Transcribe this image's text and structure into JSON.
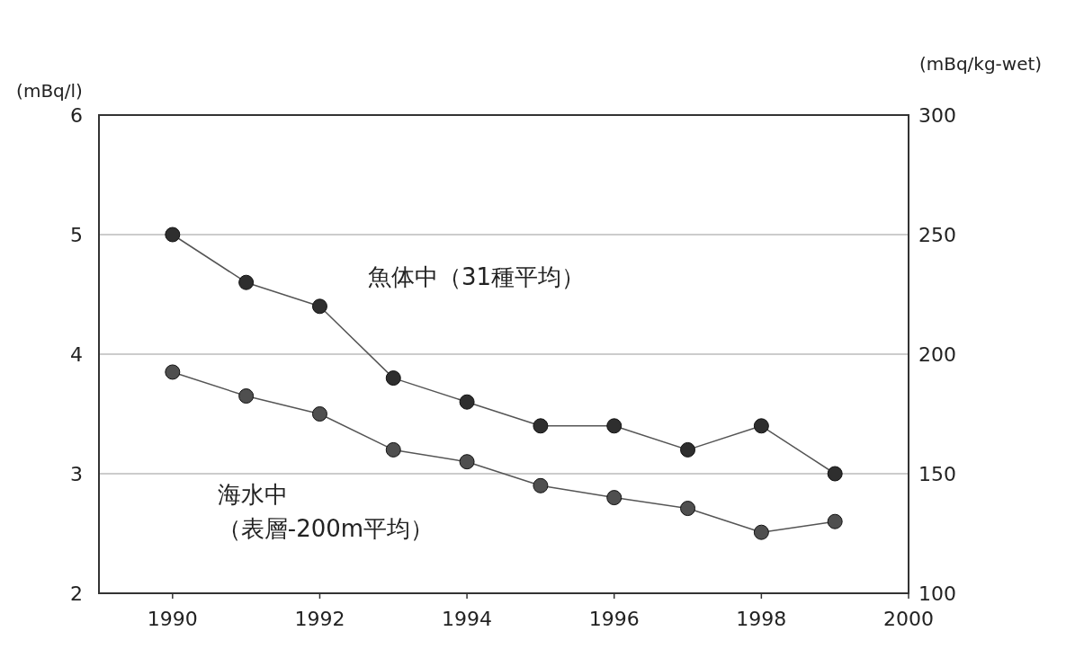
{
  "chart_data": {
    "type": "line",
    "ylabel": "(mBq/l)",
    "y2label": "(mBq/kg-wet)",
    "x": [
      1990,
      1991,
      1992,
      1993,
      1994,
      1995,
      1996,
      1997,
      1998,
      1999
    ],
    "xlim": [
      1989,
      2000
    ],
    "xticks": [
      1990,
      1992,
      1994,
      1996,
      1998,
      2000
    ],
    "ylim": [
      2,
      6
    ],
    "yticks": [
      2,
      3,
      4,
      5,
      6
    ],
    "y2lim": [
      100,
      300
    ],
    "y2ticks": [
      100,
      150,
      200,
      250,
      300
    ],
    "grid": "y",
    "marker": "circle",
    "line_style": "solid",
    "series": [
      {
        "name": "魚体中（31種平均）",
        "axis": "y2",
        "color": "#2e2e2e",
        "values": [
          250,
          230,
          220,
          190,
          180,
          170,
          170,
          160,
          170,
          150
        ]
      },
      {
        "name": "海水中（表層-200m平均）",
        "axis": "y",
        "color": "#4f4f4f",
        "values": [
          3.85,
          3.65,
          3.5,
          3.2,
          3.1,
          2.9,
          2.8,
          2.71,
          2.51,
          2.6
        ]
      }
    ]
  }
}
